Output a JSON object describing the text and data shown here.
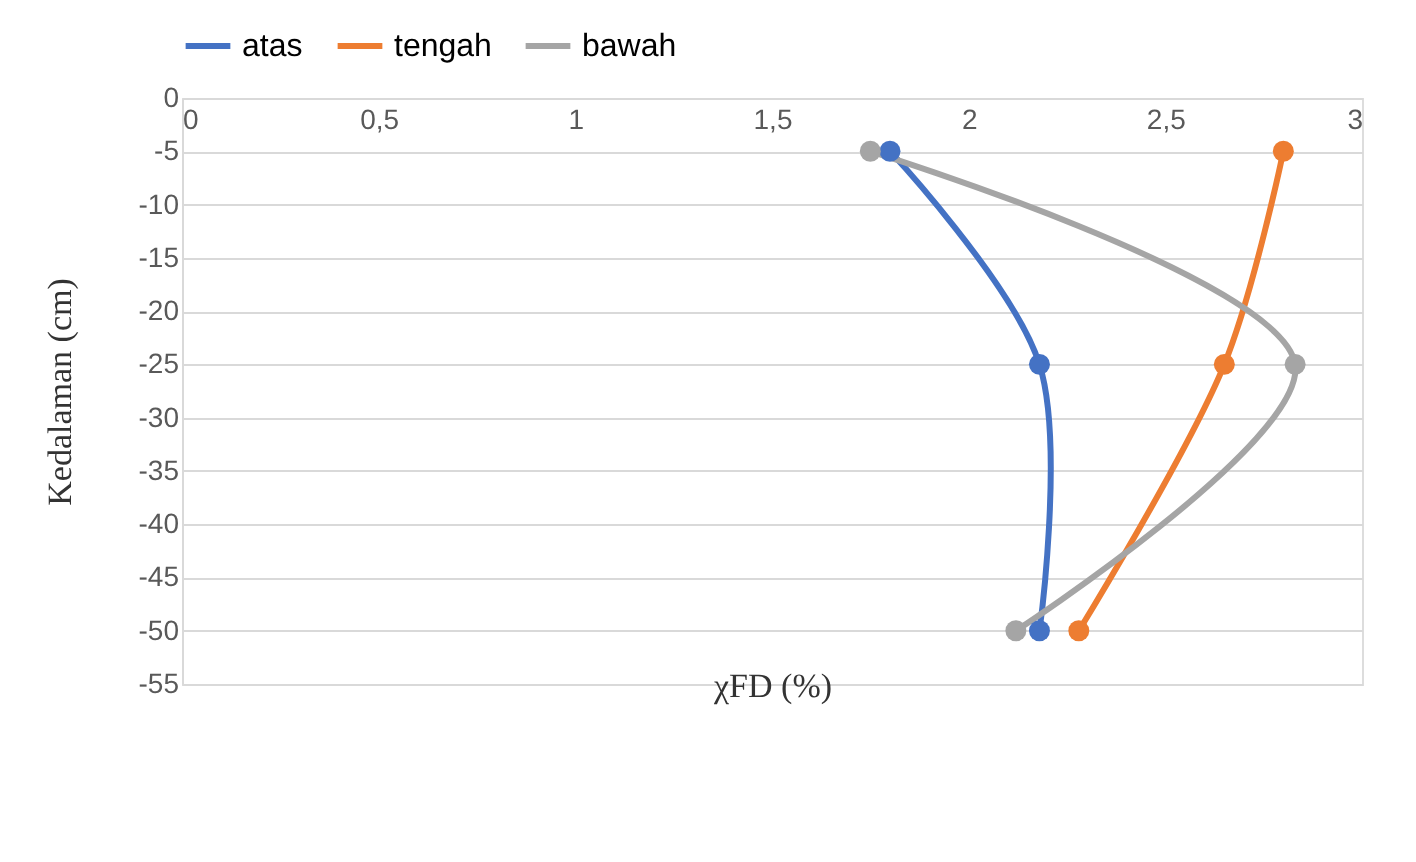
{
  "chart_data": {
    "type": "line",
    "xlabel": "χFD (%)",
    "ylabel": "Kedalaman (cm)",
    "series": [
      {
        "name": "atas",
        "color": "#4472c4",
        "x": [
          1.8,
          2.18,
          2.18
        ],
        "values": [
          -5,
          -25,
          -50
        ]
      },
      {
        "name": "tengah",
        "color": "#ed7d31",
        "x": [
          2.8,
          2.65,
          2.28
        ],
        "values": [
          -5,
          -25,
          -50
        ]
      },
      {
        "name": "bawah",
        "color": "#a5a5a5",
        "x": [
          1.75,
          2.83,
          2.12
        ],
        "values": [
          -5,
          -25,
          -50
        ]
      }
    ],
    "xlim": [
      0,
      3
    ],
    "xticks": [
      0,
      {
        "value": 0.5,
        "label": "0,5"
      },
      1,
      {
        "value": 1.5,
        "label": "1,5"
      },
      2,
      {
        "value": 2.5,
        "label": "2,5"
      },
      3
    ],
    "ylim": [
      -55,
      0
    ],
    "yticks": [
      0,
      -5,
      -10,
      -15,
      -20,
      -25,
      -30,
      -35,
      -40,
      -45,
      -50,
      -55
    ],
    "grid": "y",
    "legend": "top",
    "marker": "circle",
    "line_style": "solid"
  }
}
